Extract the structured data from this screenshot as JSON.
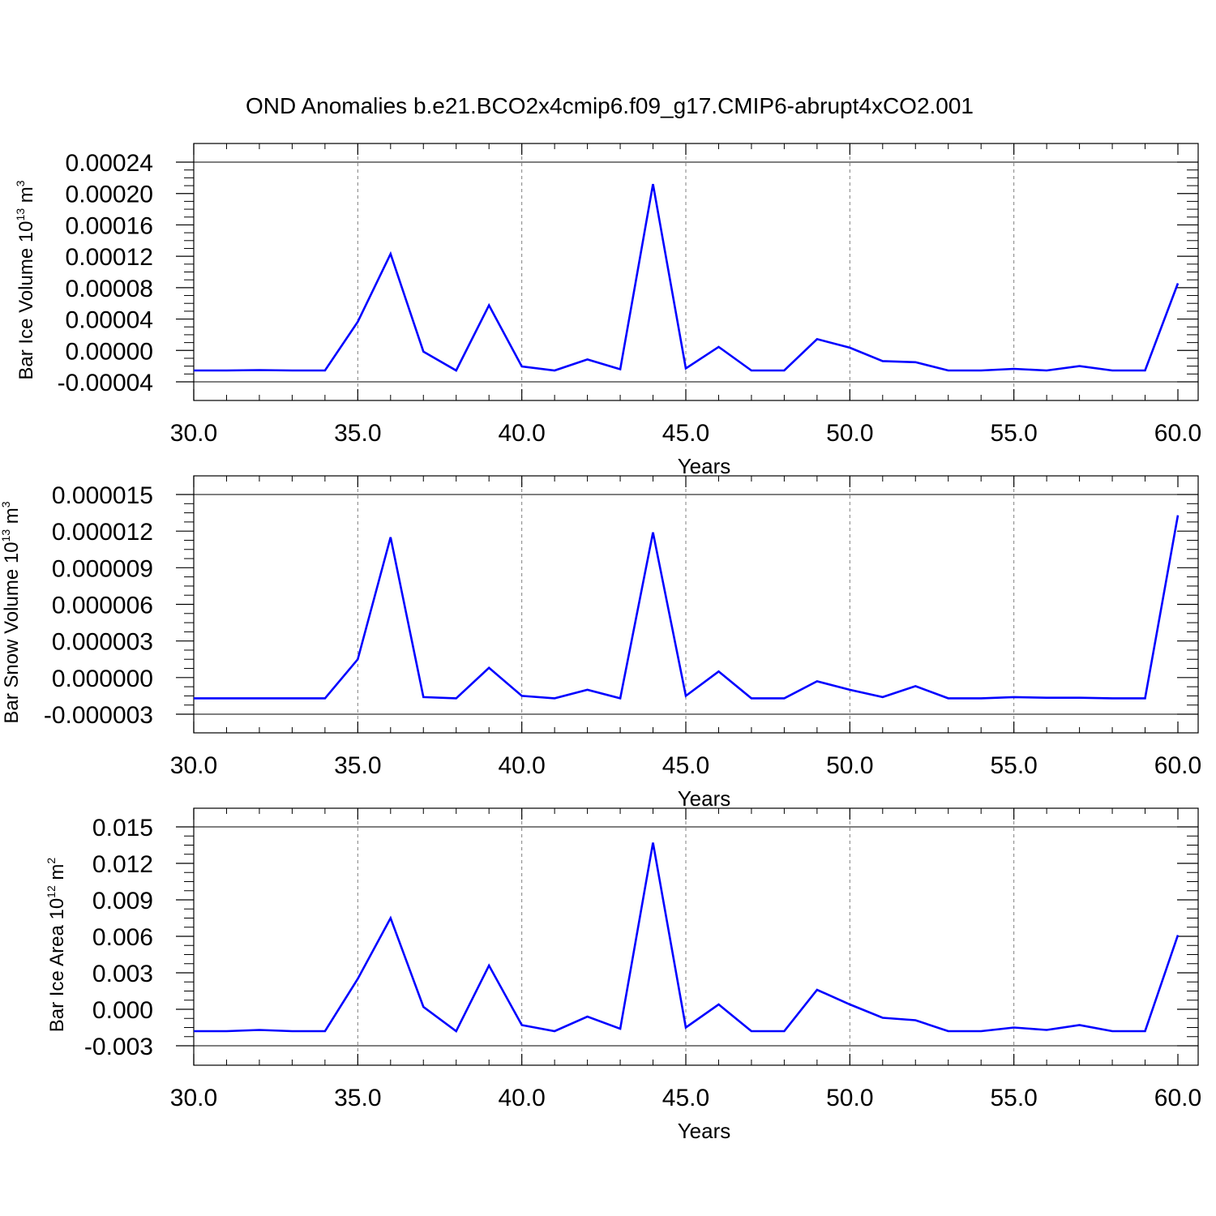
{
  "title": "OND Anomalies b.e21.BCO2x4cmip6.f09_g17.CMIP6-abrupt4xCO2.001",
  "colors": {
    "line": "#0000ff",
    "axis": "#000000",
    "grid": "#7f7f7f"
  },
  "chart_data": [
    {
      "type": "line",
      "xlabel": "Years",
      "ylabel": {
        "text": "Bar Ice Volume 10",
        "exp": "13",
        "unit": " m",
        "unit_exp": "3"
      },
      "xlim": [
        30,
        60
      ],
      "ylim": [
        -4e-05,
        0.00024
      ],
      "xticks": [
        "30.0",
        "35.0",
        "40.0",
        "45.0",
        "50.0",
        "55.0",
        "60.0"
      ],
      "yticks": [
        "-0.00004",
        "0.00000",
        "0.00004",
        "0.00008",
        "0.00012",
        "0.00016",
        "0.00020",
        "0.00024"
      ],
      "grid": "x-dashed",
      "x": [
        30,
        31,
        32,
        33,
        34,
        35,
        36,
        37,
        38,
        39,
        40,
        41,
        42,
        43,
        44,
        45,
        46,
        47,
        48,
        49,
        50,
        51,
        52,
        53,
        54,
        55,
        56,
        57,
        58,
        59,
        60
      ],
      "series": [
        {
          "values": [
            -2.55e-05,
            -2.55e-05,
            -2.5e-05,
            -2.55e-05,
            -2.55e-05,
            3.65e-05,
            0.000123,
            -1.5e-06,
            -2.55e-05,
            5.75e-05,
            -2.05e-05,
            -2.55e-05,
            -1.15e-05,
            -2.4e-05,
            0.000212,
            -2.3e-05,
            4.5e-06,
            -2.55e-05,
            -2.55e-05,
            1.45e-05,
            3.5e-06,
            -1.35e-05,
            -1.5e-05,
            -2.55e-05,
            -2.55e-05,
            -2.35e-05,
            -2.55e-05,
            -2e-05,
            -2.55e-05,
            -2.55e-05,
            8.55e-05
          ]
        }
      ]
    },
    {
      "type": "line",
      "xlabel": "Years",
      "ylabel": {
        "text": "Bar Snow Volume 10",
        "exp": "13",
        "unit": " m",
        "unit_exp": "3"
      },
      "xlim": [
        30,
        60
      ],
      "ylim": [
        -3e-06,
        1.5e-05
      ],
      "xticks": [
        "30.0",
        "35.0",
        "40.0",
        "45.0",
        "50.0",
        "55.0",
        "60.0"
      ],
      "yticks": [
        "-0.000003",
        "0.000000",
        "0.000003",
        "0.000006",
        "0.000009",
        "0.000012",
        "0.000015"
      ],
      "grid": "x-dashed",
      "x": [
        30,
        31,
        32,
        33,
        34,
        35,
        36,
        37,
        38,
        39,
        40,
        41,
        42,
        43,
        44,
        45,
        46,
        47,
        48,
        49,
        50,
        51,
        52,
        53,
        54,
        55,
        56,
        57,
        58,
        59,
        60
      ],
      "series": [
        {
          "values": [
            -1.7e-06,
            -1.7e-06,
            -1.7e-06,
            -1.7e-06,
            -1.7e-06,
            1.5e-06,
            1.15e-05,
            -1.6e-06,
            -1.7e-06,
            8e-07,
            -1.5e-06,
            -1.7e-06,
            -1e-06,
            -1.7e-06,
            1.19e-05,
            -1.5e-06,
            5e-07,
            -1.7e-06,
            -1.7e-06,
            -3e-07,
            -1e-06,
            -1.6e-06,
            -7e-07,
            -1.7e-06,
            -1.7e-06,
            -1.6e-06,
            -1.65e-06,
            -1.65e-06,
            -1.7e-06,
            -1.7e-06,
            1.33e-05
          ]
        }
      ]
    },
    {
      "type": "line",
      "xlabel": "Years",
      "ylabel": {
        "text": "Bar Ice Area 10",
        "exp": "12",
        "unit": " m",
        "unit_exp": "2"
      },
      "xlim": [
        30,
        60
      ],
      "ylim": [
        -0.003,
        0.015
      ],
      "xticks": [
        "30.0",
        "35.0",
        "40.0",
        "45.0",
        "50.0",
        "55.0",
        "60.0"
      ],
      "yticks": [
        "-0.003",
        "0.000",
        "0.003",
        "0.006",
        "0.009",
        "0.012",
        "0.015"
      ],
      "grid": "x-dashed",
      "x": [
        30,
        31,
        32,
        33,
        34,
        35,
        36,
        37,
        38,
        39,
        40,
        41,
        42,
        43,
        44,
        45,
        46,
        47,
        48,
        49,
        50,
        51,
        52,
        53,
        54,
        55,
        56,
        57,
        58,
        59,
        60
      ],
      "series": [
        {
          "values": [
            -0.0018,
            -0.0018,
            -0.0017,
            -0.0018,
            -0.0018,
            0.0025,
            0.0075,
            0.0002,
            -0.0018,
            0.0036,
            -0.0013,
            -0.0018,
            -0.0006,
            -0.0016,
            0.0137,
            -0.0015,
            0.0004,
            -0.0018,
            -0.0018,
            0.0016,
            0.0004,
            -0.0007,
            -0.0009,
            -0.0018,
            -0.0018,
            -0.0015,
            -0.0017,
            -0.0013,
            -0.0018,
            -0.0018,
            0.0061
          ]
        }
      ]
    }
  ]
}
